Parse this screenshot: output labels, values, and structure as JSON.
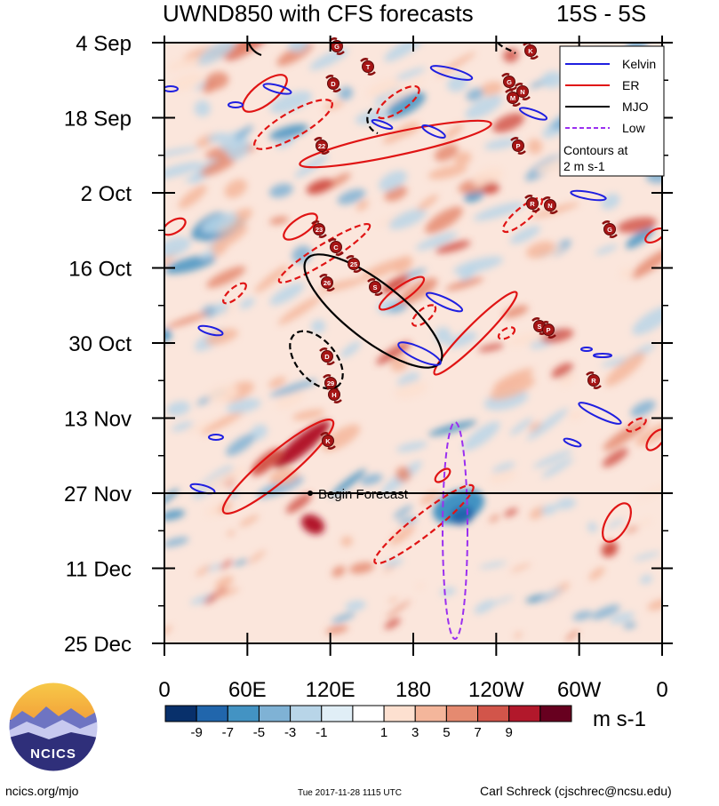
{
  "chart_data": {
    "type": "heatmap",
    "title": "UWND850 with CFS forecasts",
    "lat_band": "15S - 5S",
    "ylabels": [
      "4 Sep",
      "18 Sep",
      "2 Oct",
      "16 Oct",
      "30 Oct",
      "13 Nov",
      "27 Nov",
      "11 Dec",
      "25 Dec"
    ],
    "xlabels": [
      "0",
      "60E",
      "120E",
      "180",
      "120W",
      "60W",
      "0"
    ],
    "x_range_deg": [
      0,
      360
    ],
    "time_range_days": [
      0,
      112
    ],
    "forecast_start_label": "Begin Forecast",
    "forecast_start_day": 84,
    "colorbar": {
      "units": "m s-1",
      "tick_labels": [
        "-9",
        "-7",
        "-5",
        "-3",
        "-1",
        "1",
        "3",
        "5",
        "7",
        "9"
      ],
      "colors": [
        "#08306b",
        "#2166ac",
        "#4393c3",
        "#7fb2d5",
        "#b8d5e8",
        "#e0eef6",
        "#ffffff",
        "#fde0d0",
        "#f4b69b",
        "#e58a70",
        "#d2554a",
        "#b2182b",
        "#67001f"
      ]
    },
    "legend": {
      "entries": [
        {
          "label": "Kelvin",
          "color": "#1f1fe0",
          "dash": false
        },
        {
          "label": "ER",
          "color": "#e01414",
          "dash": false
        },
        {
          "label": "MJO",
          "color": "#000000",
          "dash": false
        },
        {
          "label": "Low",
          "color": "#9b30f0",
          "dash": true
        }
      ],
      "note_line1": "Contours at",
      "note_line2": "2 m s-1"
    },
    "storm_labels": [
      "G",
      "T",
      "D",
      "K",
      "G",
      "N",
      "M",
      "22",
      "P",
      "R",
      "N",
      "G",
      "23",
      "C",
      "25",
      "26",
      "S",
      "S",
      "P",
      "D",
      "29",
      "H",
      "K",
      "R"
    ]
  },
  "branding": {
    "logo_text": "NCICS",
    "site": "ncics.org/mjo",
    "timestamp": "Tue 2017-11-28 1115 UTC",
    "author": "Carl Schreck (cjschrec@ncsu.edu)"
  }
}
